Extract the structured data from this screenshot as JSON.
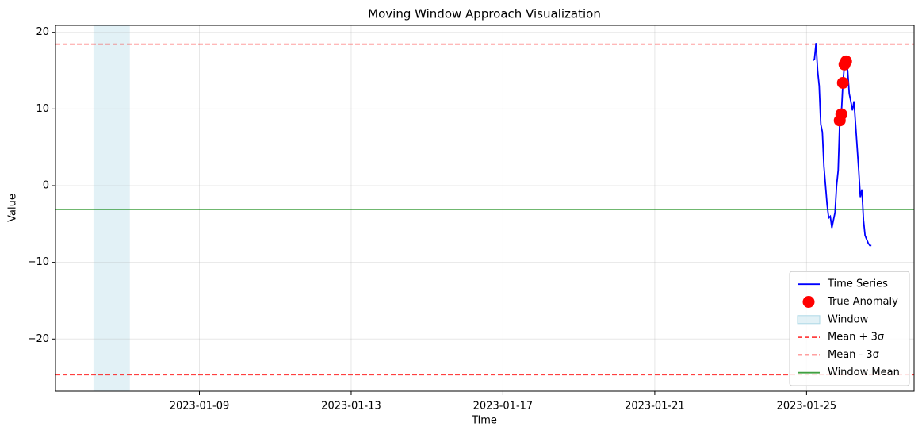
{
  "chart_data": {
    "type": "line",
    "title": "Moving Window Approach Visualization",
    "x_label": "Time",
    "y_label": "Value",
    "xlim": [
      "2023-01-05T05:00",
      "2023-01-27T20:00"
    ],
    "xticks": [
      "2023-01-09",
      "2023-01-13",
      "2023-01-17",
      "2023-01-21",
      "2023-01-25"
    ],
    "ylim": [
      -26.8,
      20.9
    ],
    "yticks": [
      {
        "value": -20,
        "label": "−20"
      },
      {
        "value": -10,
        "label": "−10"
      },
      0,
      10,
      20
    ],
    "grid": true,
    "legend": "lower right",
    "series": [
      {
        "name": "Time Series",
        "color": "#0000ff",
        "x": [
          "2023-01-25T04:00",
          "2023-01-25T05:00",
          "2023-01-25T06:00",
          "2023-01-25T07:00",
          "2023-01-25T08:00",
          "2023-01-25T09:00",
          "2023-01-25T10:00",
          "2023-01-25T11:00",
          "2023-01-25T12:00",
          "2023-01-25T13:00",
          "2023-01-25T14:00",
          "2023-01-25T15:00",
          "2023-01-25T16:00",
          "2023-01-25T17:00",
          "2023-01-25T18:00",
          "2023-01-25T19:00",
          "2023-01-25T20:00",
          "2023-01-25T21:00",
          "2023-01-25T22:00",
          "2023-01-25T23:00",
          "2023-01-26T00:00",
          "2023-01-26T01:00",
          "2023-01-26T02:00",
          "2023-01-26T03:00",
          "2023-01-26T04:00",
          "2023-01-26T05:00",
          "2023-01-26T06:00",
          "2023-01-26T07:00",
          "2023-01-26T08:00",
          "2023-01-26T09:00",
          "2023-01-26T10:00",
          "2023-01-26T11:00",
          "2023-01-26T12:00",
          "2023-01-26T13:00",
          "2023-01-26T14:00",
          "2023-01-26T15:00",
          "2023-01-26T16:00",
          "2023-01-26T17:00"
        ],
        "values": [
          16.3,
          16.5,
          18.6,
          15.0,
          13.0,
          8.0,
          7.0,
          2.5,
          0.0,
          -2.5,
          -4.2,
          -4.0,
          -5.5,
          -4.5,
          -3.5,
          0.0,
          2.0,
          8.5,
          9.3,
          13.4,
          15.8,
          16.2,
          15.0,
          12.0,
          11.0,
          9.8,
          11.0,
          8.0,
          5.0,
          2.0,
          -1.5,
          -0.5,
          -4.5,
          -6.5,
          -7.0,
          -7.5,
          -7.8,
          -7.8
        ]
      },
      {
        "name": "True Anomaly",
        "type": "scatter",
        "color": "#ff0000",
        "x": [
          "2023-01-25T21:00",
          "2023-01-25T22:00",
          "2023-01-25T23:00",
          "2023-01-26T00:00",
          "2023-01-26T01:00"
        ],
        "values": [
          8.5,
          9.3,
          13.4,
          15.8,
          16.2
        ]
      }
    ],
    "spans": [
      {
        "name": "Window",
        "color": "#add8e6",
        "x": [
          "2023-01-06T05:00",
          "2023-01-07T04:00"
        ]
      }
    ],
    "hlines": [
      {
        "name": "Mean + 3σ",
        "value": 18.45,
        "color": "#ff0000",
        "dashed": true
      },
      {
        "name": "Mean - 3σ",
        "value": -24.66,
        "color": "#ff0000",
        "dashed": true
      },
      {
        "name": "Window Mean",
        "value": -3.11,
        "color": "#008000",
        "dashed": false
      }
    ]
  }
}
